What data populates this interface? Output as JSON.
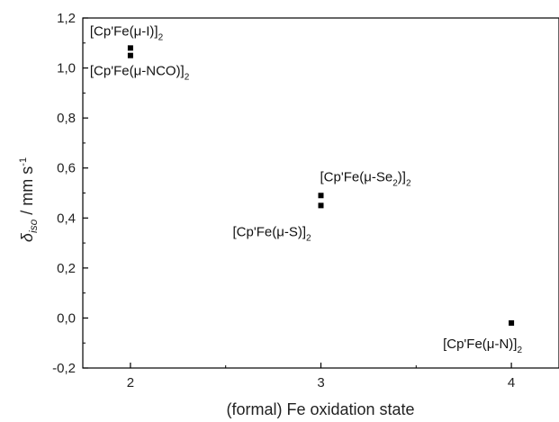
{
  "chart_data": {
    "type": "scatter",
    "title": "",
    "xlabel": "(formal) Fe oxidation state",
    "ylabel": {
      "symbol": "δ",
      "subscript": "iso",
      "unit_prefix": " / mm s",
      "unit_superscript": "-1"
    },
    "xlim": [
      1.75,
      4.25
    ],
    "ylim": [
      -0.2,
      1.2
    ],
    "xticks": [
      2,
      3,
      4
    ],
    "yticks": [
      -0.2,
      0.0,
      0.2,
      0.4,
      0.6,
      0.8,
      1.0,
      1.2
    ],
    "ytick_labels": [
      "-0,2",
      "0,0",
      "0,2",
      "0,4",
      "0,6",
      "0,8",
      "1,0",
      "1,2"
    ],
    "xtick_labels": [
      "2",
      "3",
      "4"
    ],
    "grid": false,
    "legend": "none",
    "marker": "square",
    "marker_color": "#000000",
    "points": [
      {
        "x": 2,
        "y": 1.08,
        "label_parts": [
          "[Cp'Fe(μ-I)]",
          "2"
        ]
      },
      {
        "x": 2,
        "y": 1.05,
        "label_parts": [
          "[Cp'Fe(μ-NCO)]",
          "2"
        ]
      },
      {
        "x": 3,
        "y": 0.49,
        "label_parts": [
          "[Cp'Fe(μ-Se",
          "2",
          ")]",
          "2"
        ]
      },
      {
        "x": 3,
        "y": 0.45,
        "label_parts": [
          "[Cp'Fe(μ-S)]",
          "2"
        ]
      },
      {
        "x": 4,
        "y": -0.02,
        "label_parts": [
          "[Cp'Fe(μ-N)]",
          "2"
        ]
      }
    ]
  }
}
